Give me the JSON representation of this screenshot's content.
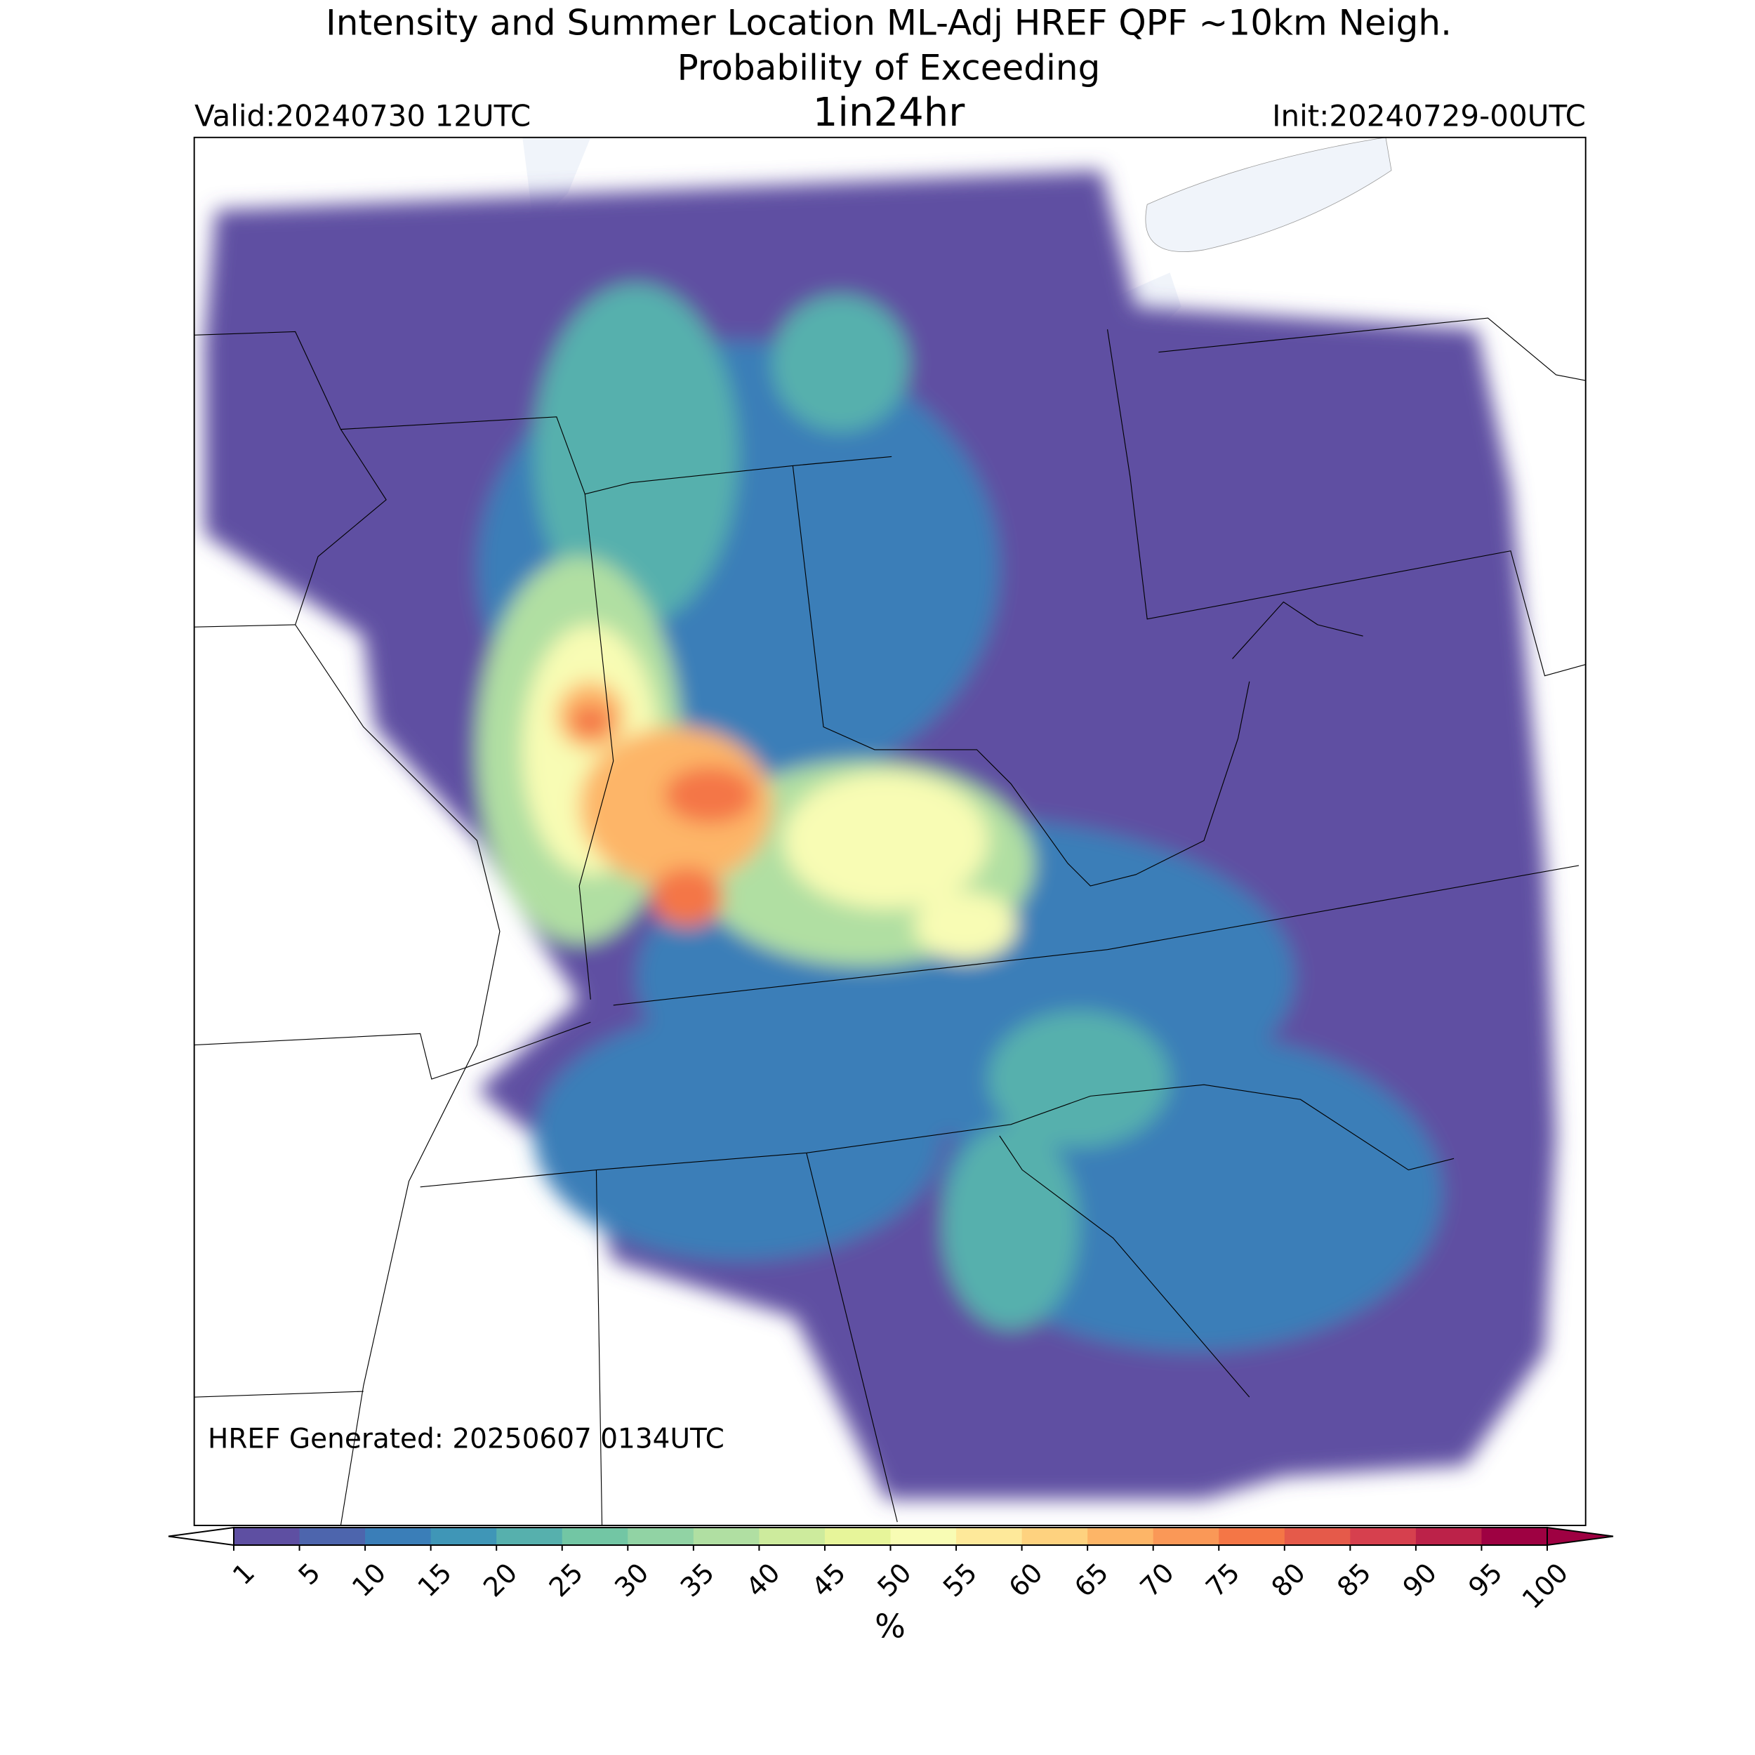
{
  "header": {
    "title": "Intensity and Summer Location ML-Adj HREF QPF ~10km Neigh.",
    "subtitle": "Probability of Exceeding",
    "valid": "Valid:20240730 12UTC",
    "threshold": "1in24hr",
    "init": "Init:20240729-00UTC"
  },
  "map": {
    "annotation": "HREF Generated: 20250607 0134UTC"
  },
  "colorbar": {
    "label": "%",
    "ticks": [
      1,
      5,
      10,
      15,
      20,
      25,
      30,
      35,
      40,
      45,
      50,
      55,
      60,
      65,
      70,
      75,
      80,
      85,
      90,
      95,
      100
    ],
    "colors": [
      "#5e4fa2",
      "#4d65ad",
      "#3a7eb8",
      "#3f96b7",
      "#56b0ad",
      "#72c6a4",
      "#91d3a4",
      "#b0dfa2",
      "#cdeb9d",
      "#e7f59a",
      "#f8fcb4",
      "#fee99a",
      "#fed27f",
      "#fdb567",
      "#fa9857",
      "#f47646",
      "#e55a4a",
      "#d6404e",
      "#bc2249",
      "#9e0142"
    ],
    "under_color": "#ffffff",
    "over_color": "#9e0142"
  }
}
